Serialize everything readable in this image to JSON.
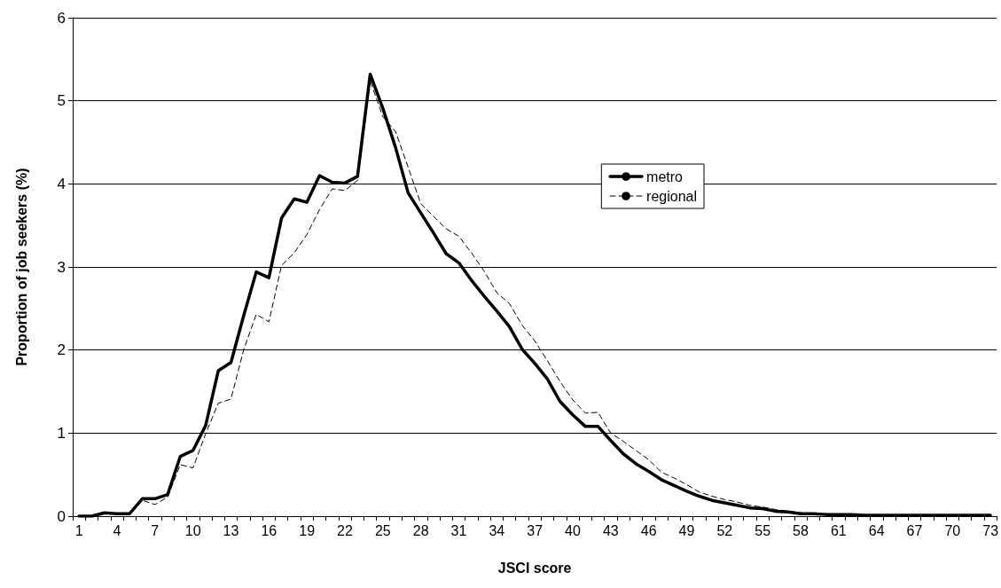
{
  "chart_data": {
    "type": "line",
    "xlabel": "JSCI score",
    "ylabel": "Proportion of job seekers (%)",
    "categories": [
      "1",
      null,
      null,
      "4",
      null,
      null,
      "7",
      null,
      null,
      "10",
      null,
      null,
      "13",
      null,
      null,
      "16",
      null,
      null,
      "19",
      null,
      null,
      "22",
      null,
      null,
      "25",
      null,
      null,
      "28",
      null,
      null,
      "31",
      null,
      null,
      "34",
      null,
      null,
      "37",
      null,
      null,
      "40",
      null,
      null,
      "43",
      null,
      null,
      "46",
      null,
      null,
      "49",
      null,
      null,
      "52",
      null,
      null,
      "55",
      null,
      null,
      "58",
      null,
      null,
      "61",
      null,
      null,
      "64",
      null,
      null,
      "67",
      null,
      null,
      "70",
      null,
      null,
      "73"
    ],
    "series": [
      {
        "name": "metro",
        "color": "#000000",
        "line_style": "solid",
        "values": [
          0,
          0,
          0.04,
          0.03,
          0.03,
          0.21,
          0.21,
          0.26,
          0.72,
          0.79,
          1.09,
          1.75,
          1.85,
          2.41,
          2.94,
          2.87,
          3.59,
          3.82,
          3.78,
          4.1,
          4.02,
          4.01,
          4.09,
          5.32,
          4.91,
          4.44,
          3.89,
          3.65,
          3.41,
          3.16,
          3.05,
          2.84,
          2.65,
          2.47,
          2.28,
          2.01,
          1.84,
          1.65,
          1.38,
          1.22,
          1.08,
          1.08,
          0.91,
          0.75,
          0.63,
          0.54,
          0.44,
          0.37,
          0.3,
          0.24,
          0.19,
          0.16,
          0.13,
          0.1,
          0.09,
          0.06,
          0.05,
          0.03,
          0.03,
          0.02,
          0.02,
          0.02,
          0.01,
          0.01,
          0.01,
          0.01,
          0.01,
          0.01,
          0.01,
          0.01,
          0.01,
          0.01,
          0.01
        ]
      },
      {
        "name": "regional",
        "color": "#000000",
        "line_style": "dashed",
        "values": [
          0,
          0,
          0.03,
          0.03,
          0.03,
          0.19,
          0.14,
          0.23,
          0.62,
          0.58,
          0.99,
          1.36,
          1.41,
          2.0,
          2.43,
          2.34,
          3.02,
          3.17,
          3.39,
          3.69,
          3.94,
          3.92,
          4.04,
          5.24,
          4.81,
          4.63,
          4.2,
          3.76,
          3.61,
          3.46,
          3.37,
          3.17,
          2.95,
          2.69,
          2.56,
          2.3,
          2.11,
          1.87,
          1.62,
          1.4,
          1.24,
          1.25,
          1.0,
          0.9,
          0.79,
          0.68,
          0.53,
          0.46,
          0.38,
          0.29,
          0.24,
          0.2,
          0.17,
          0.13,
          0.11,
          0.08,
          0.06,
          0.04,
          0.03,
          0.03,
          0.02,
          0.02,
          0.01,
          0.01,
          0.01,
          0.01,
          0.01,
          0.01,
          0.01,
          0.01,
          0.01,
          0.01,
          0.01
        ]
      }
    ],
    "ylim": [
      0,
      6
    ],
    "yticks": [
      0,
      1,
      2,
      3,
      4,
      5,
      6
    ],
    "grid": "y",
    "legend": "center",
    "marker": "none"
  }
}
